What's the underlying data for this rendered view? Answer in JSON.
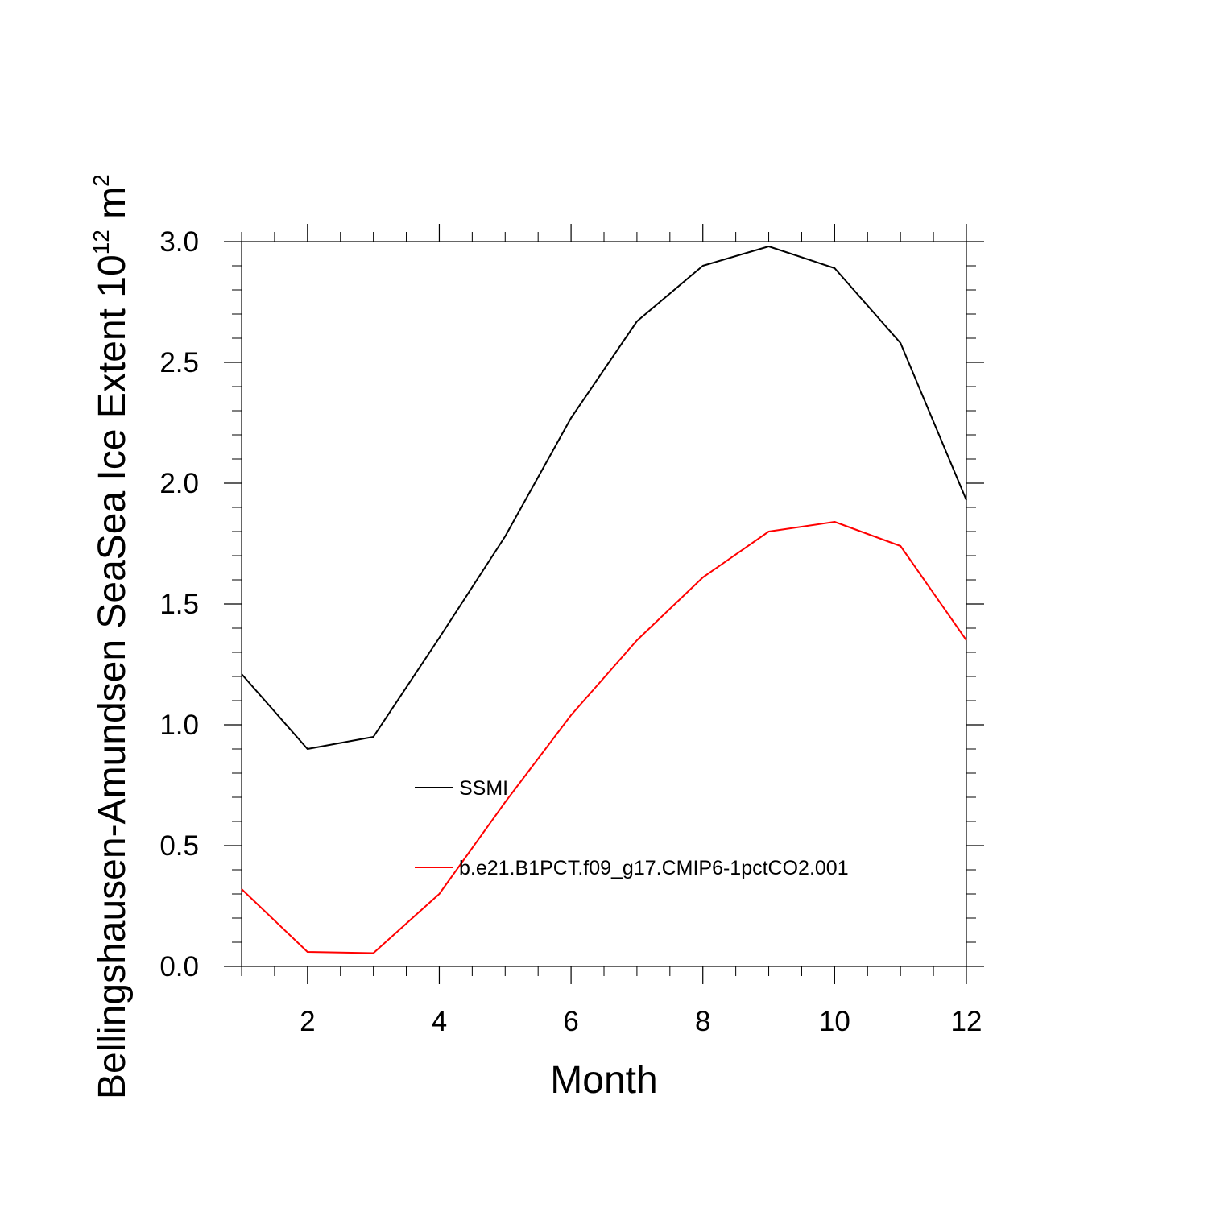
{
  "chart_data": {
    "type": "line",
    "title": "",
    "xlabel": "Month",
    "ylabel": "Bellingshausen-Amundsen SeaSea Ice Extent 10",
    "ylabel_exponent": "12",
    "ylabel_unit": " m",
    "ylabel_unit_exponent": "2",
    "xlim": [
      1,
      12
    ],
    "ylim": [
      0,
      3
    ],
    "x_ticks": [
      2,
      4,
      6,
      8,
      10,
      12
    ],
    "x_tick_labels": [
      "2",
      "4",
      "6",
      "8",
      "10",
      "12"
    ],
    "y_ticks": [
      0,
      0.5,
      1,
      1.5,
      2,
      2.5,
      3
    ],
    "y_tick_labels": [
      "0.0",
      "0.5",
      "1.0",
      "1.5",
      "2.0",
      "2.5",
      "3.0"
    ],
    "grid": false,
    "legend_position": "center",
    "x": [
      1,
      2,
      3,
      4,
      5,
      6,
      7,
      8,
      9,
      10,
      11,
      12
    ],
    "series": [
      {
        "name": "SSMI",
        "color": "#000000",
        "values": [
          1.21,
          0.9,
          0.95,
          1.36,
          1.78,
          2.27,
          2.67,
          2.9,
          2.98,
          2.89,
          2.58,
          1.93
        ]
      },
      {
        "name": "b.e21.B1PCT.f09_g17.CMIP6-1pctCO2.001",
        "color": "#ff0000",
        "values": [
          0.32,
          0.06,
          0.055,
          0.3,
          0.68,
          1.04,
          1.35,
          1.61,
          1.8,
          1.84,
          1.74,
          1.35
        ]
      }
    ]
  }
}
